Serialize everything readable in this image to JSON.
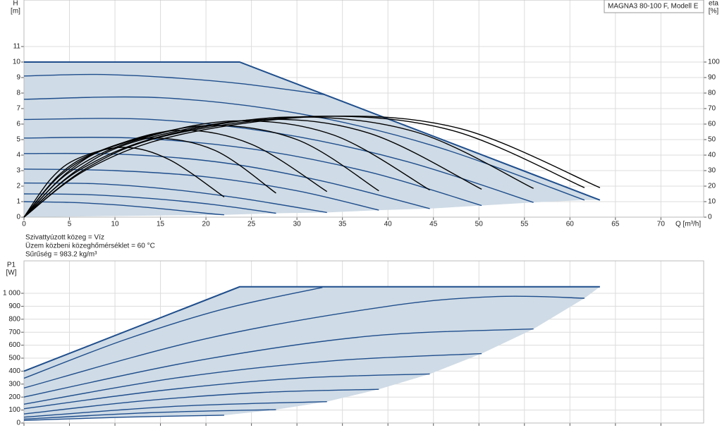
{
  "chart_data": [
    {
      "type": "line",
      "ylabel": "H",
      "yunit": "[m]",
      "y2label": "eta",
      "y2unit": "[%]",
      "xlabel": "Q [m³/h]",
      "annotation": "MAGNA3 80-100 F, Modell E",
      "notes": [
        "Szivattyúzott közeg = Víz",
        "Üzem közbeni közeghőmérséklet = 60 °C",
        "Sűrűség = 983.2 kg/m³"
      ],
      "xlim": [
        0,
        74.7
      ],
      "ylim": [
        0,
        14
      ],
      "y2lim": [
        0,
        140
      ],
      "xticks": [
        0,
        5,
        10,
        15,
        20,
        25,
        30,
        35,
        40,
        45,
        50,
        55,
        60,
        65,
        70
      ],
      "yticks": [
        0,
        1,
        2,
        3,
        4,
        5,
        6,
        7,
        8,
        9,
        10,
        11
      ],
      "y2ticks": [
        0,
        10,
        20,
        30,
        40,
        50,
        60,
        70,
        80,
        90,
        100
      ],
      "grid": true,
      "area": {
        "color": "#cfdbe6",
        "x": [
          0,
          22,
          27.7,
          33.3,
          39,
          44.6,
          50.3,
          56,
          61.6,
          63.3
        ],
        "values": [
          0,
          0.15,
          0.25,
          0.3,
          0.45,
          0.55,
          0.75,
          0.95,
          1.1,
          1.1
        ]
      },
      "series": [
        {
          "color": "#1f4e8c",
          "width": 2,
          "x": [
            0,
            23.7,
            63.3
          ],
          "values": [
            10,
            10,
            1.1
          ]
        },
        {
          "color": "#1f4e8c",
          "x": [
            0,
            5,
            10,
            15,
            20,
            22
          ],
          "values": [
            1.0,
            0.95,
            0.8,
            0.55,
            0.25,
            0.15
          ]
        },
        {
          "color": "#1f4e8c",
          "x": [
            0,
            7,
            14,
            21,
            27.7
          ],
          "values": [
            1.5,
            1.45,
            1.2,
            0.8,
            0.25
          ]
        },
        {
          "color": "#1f4e8c",
          "x": [
            0,
            8,
            16,
            24,
            33.3
          ],
          "values": [
            2.2,
            2.15,
            1.8,
            1.2,
            0.3
          ]
        },
        {
          "color": "#1f4e8c",
          "x": [
            0,
            10,
            20,
            30,
            39
          ],
          "values": [
            3.1,
            3.0,
            2.6,
            1.7,
            0.45
          ]
        },
        {
          "color": "#1f4e8c",
          "x": [
            0,
            11,
            22,
            33,
            44.6
          ],
          "values": [
            4.1,
            4.05,
            3.5,
            2.3,
            0.55
          ]
        },
        {
          "color": "#1f4e8c",
          "x": [
            0,
            12,
            25,
            38,
            50.3
          ],
          "values": [
            5.1,
            5.1,
            4.4,
            2.9,
            0.75
          ]
        },
        {
          "color": "#1f4e8c",
          "x": [
            0,
            14,
            28,
            42,
            56
          ],
          "values": [
            6.3,
            6.3,
            5.4,
            3.6,
            0.95
          ]
        },
        {
          "color": "#1f4e8c",
          "x": [
            0,
            15,
            30,
            45,
            61.6
          ],
          "values": [
            7.6,
            7.7,
            6.7,
            4.6,
            1.1
          ]
        },
        {
          "color": "#1f4e8c",
          "x": [
            0,
            8,
            16,
            24,
            33
          ],
          "values": [
            9.1,
            9.2,
            9.0,
            8.6,
            7.9
          ]
        },
        {
          "color": "#000000",
          "axis": "y2",
          "x": [
            0,
            3,
            6,
            11,
            16,
            22
          ],
          "values": [
            0,
            25,
            38,
            45,
            37,
            13
          ]
        },
        {
          "color": "#000000",
          "axis": "y2",
          "x": [
            0,
            4,
            8,
            14,
            21,
            27.7
          ],
          "values": [
            0,
            28,
            42,
            51,
            43,
            15.5
          ]
        },
        {
          "color": "#000000",
          "axis": "y2",
          "x": [
            0,
            4,
            9,
            17,
            25,
            33.3
          ],
          "values": [
            0,
            27,
            44,
            56,
            47,
            16.5
          ]
        },
        {
          "color": "#000000",
          "axis": "y2",
          "x": [
            0,
            5,
            10,
            20,
            30,
            39
          ],
          "values": [
            0,
            30,
            46,
            59,
            50,
            17
          ]
        },
        {
          "color": "#000000",
          "axis": "y2",
          "x": [
            0,
            5,
            12,
            23,
            34,
            44.6
          ],
          "values": [
            0,
            29,
            49,
            62,
            53,
            17.5
          ]
        },
        {
          "color": "#000000",
          "axis": "y2",
          "x": [
            0,
            6,
            13,
            26,
            38,
            50.3
          ],
          "values": [
            0,
            31,
            50,
            63,
            54,
            18
          ]
        },
        {
          "color": "#000000",
          "axis": "y2",
          "x": [
            0,
            6,
            15,
            29,
            43,
            56
          ],
          "values": [
            0,
            30,
            52,
            64.5,
            55,
            18.5
          ]
        },
        {
          "color": "#000000",
          "axis": "y2",
          "x": [
            0,
            7,
            16,
            32,
            47,
            61.6
          ],
          "values": [
            0,
            32,
            53,
            65,
            56,
            19
          ]
        },
        {
          "color": "#000000",
          "axis": "y2",
          "x": [
            0,
            7,
            17,
            33,
            48,
            63.3
          ],
          "values": [
            0,
            31,
            53,
            65,
            57,
            19
          ]
        }
      ]
    },
    {
      "type": "line",
      "ylabel": "P1",
      "yunit": "[W]",
      "xlim": [
        0,
        74.7
      ],
      "ylim": [
        0,
        1250
      ],
      "xticks": [
        0,
        5,
        10,
        15,
        20,
        25,
        30,
        35,
        40,
        45,
        50,
        55,
        60,
        65,
        70
      ],
      "yticks": [
        0,
        100,
        200,
        300,
        400,
        500,
        600,
        700,
        800,
        900,
        {
          "value": 1000,
          "label": "1 000"
        }
      ],
      "grid": true,
      "area": {
        "color": "#cfdbe6",
        "x": [
          0,
          22,
          27.7,
          33.3,
          39,
          44.6,
          50.3,
          56,
          61.6,
          63.3
        ],
        "values": [
          20,
          60,
          103,
          165,
          260,
          378,
          535,
          725,
          962,
          1050
        ]
      },
      "series": [
        {
          "color": "#1f4e8c",
          "width": 2,
          "x": [
            0,
            23.7,
            63.3
          ],
          "values": [
            400,
            1050,
            1050
          ]
        },
        {
          "color": "#1f4e8c",
          "x": [
            0,
            11,
            22
          ],
          "values": [
            20,
            45,
            60
          ]
        },
        {
          "color": "#1f4e8c",
          "x": [
            0,
            14,
            27.7
          ],
          "values": [
            30,
            80,
            103
          ]
        },
        {
          "color": "#1f4e8c",
          "x": [
            0,
            17,
            33.3
          ],
          "values": [
            45,
            130,
            165
          ]
        },
        {
          "color": "#1f4e8c",
          "x": [
            0,
            13,
            26,
            39
          ],
          "values": [
            70,
            170,
            235,
            260
          ]
        },
        {
          "color": "#1f4e8c",
          "x": [
            0,
            15,
            30,
            44.6
          ],
          "values": [
            110,
            250,
            345,
            378
          ]
        },
        {
          "color": "#1f4e8c",
          "x": [
            0,
            17,
            34,
            50.3
          ],
          "values": [
            145,
            350,
            480,
            535
          ]
        },
        {
          "color": "#1f4e8c",
          "x": [
            0,
            19,
            38,
            56
          ],
          "values": [
            200,
            480,
            670,
            725
          ]
        },
        {
          "color": "#1f4e8c",
          "x": [
            0,
            20,
            40,
            52,
            61.6
          ],
          "values": [
            270,
            650,
            900,
            975,
            962
          ]
        },
        {
          "color": "#1f4e8c",
          "x": [
            0,
            11,
            22,
            32.8
          ],
          "values": [
            345,
            640,
            880,
            1045
          ]
        }
      ]
    }
  ]
}
